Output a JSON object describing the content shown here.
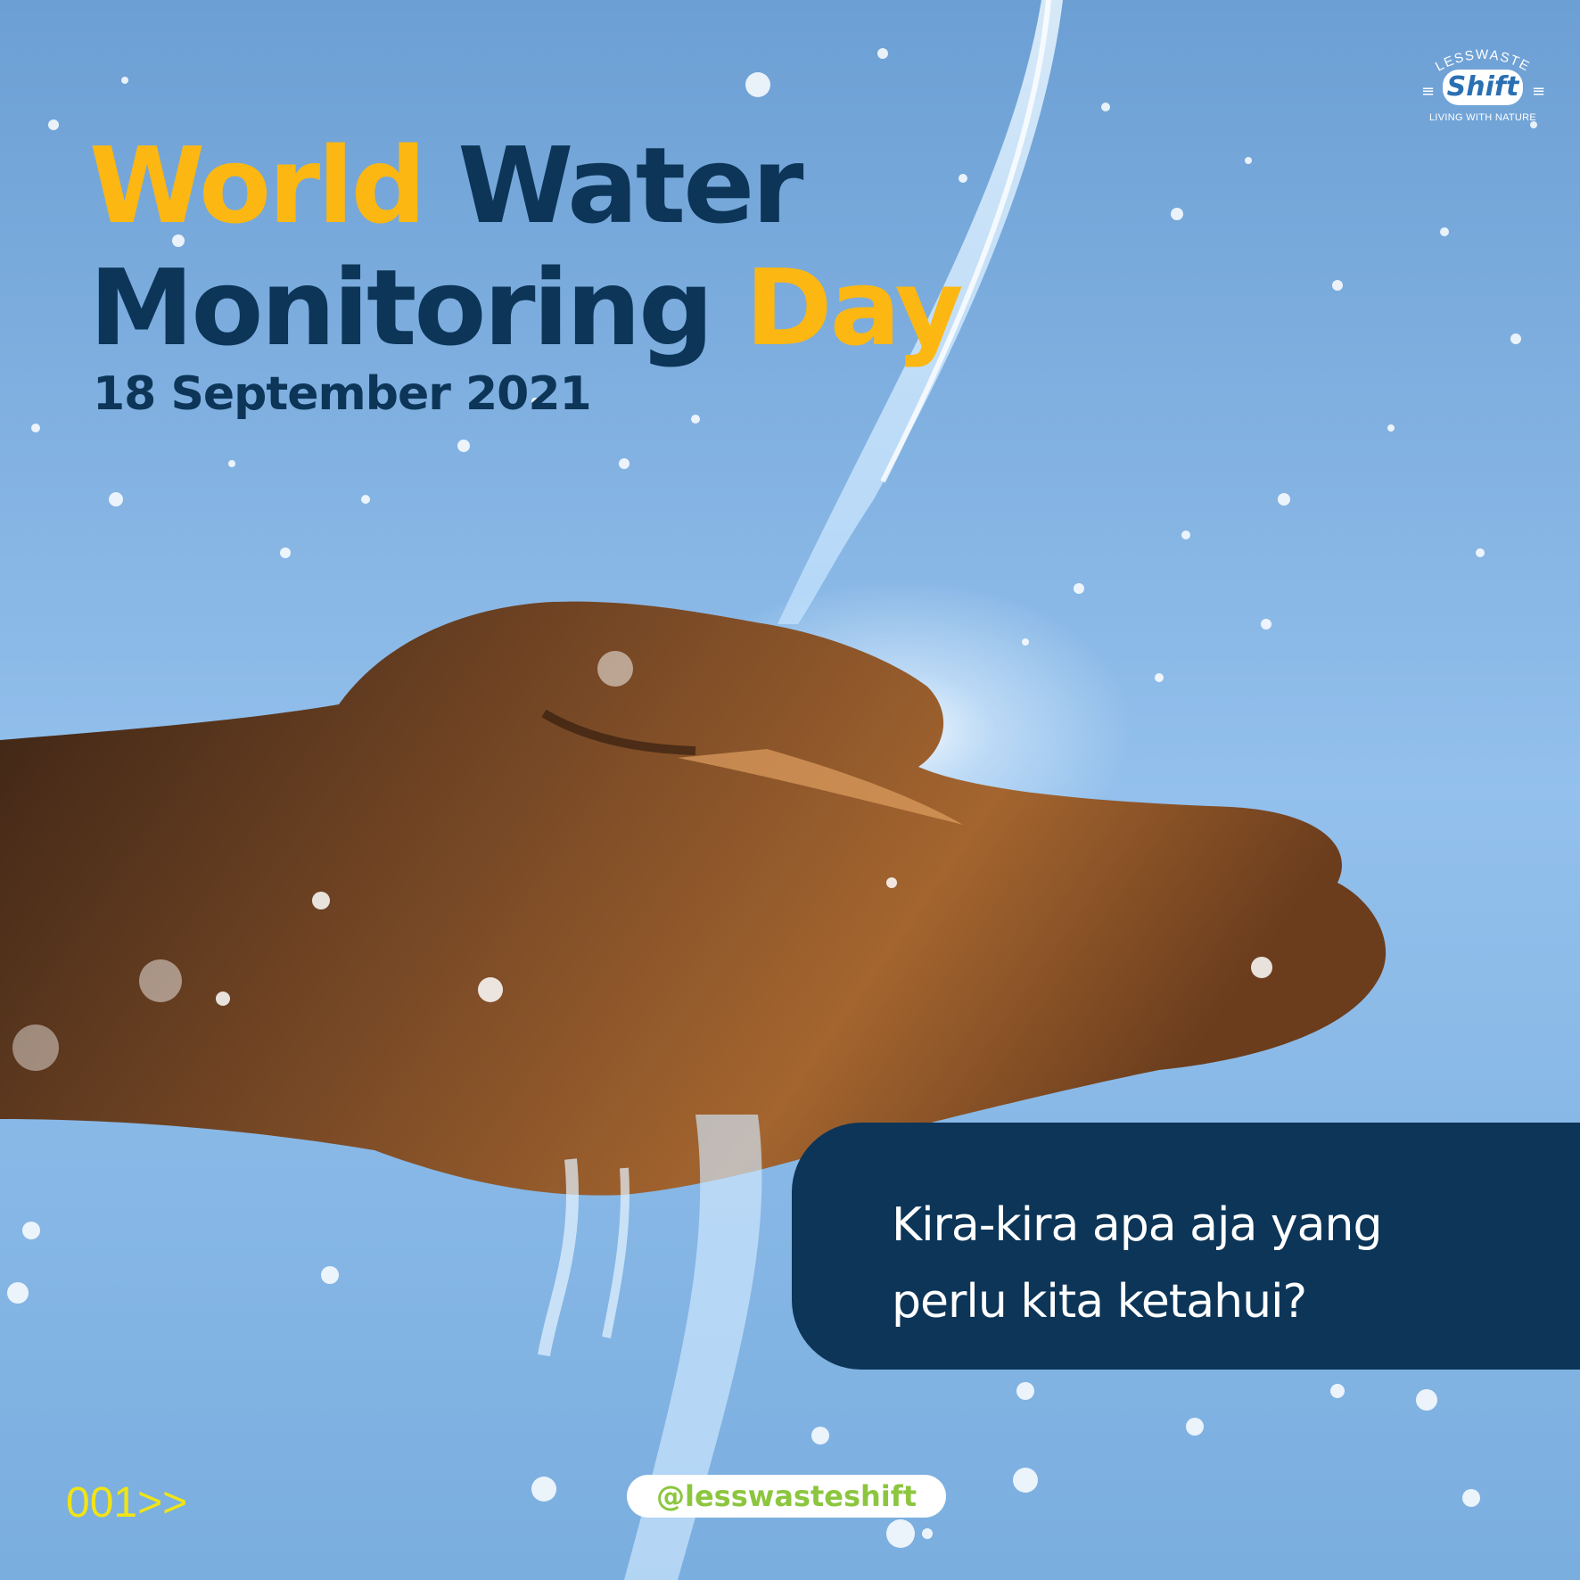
{
  "headline": {
    "line1_accent": "World",
    "line1_rest": " Water",
    "line2_main": "Monitoring ",
    "line2_accent": "Day"
  },
  "date": "18 September 2021",
  "logo": {
    "top": "LESSWASTE",
    "brand": "Shift",
    "tagline": "LIVING WITH NATURE"
  },
  "question": {
    "line1": "Kira-kira apa aja yang",
    "line2": "perlu kita ketahui?"
  },
  "page_number": "001>>",
  "handle": "@lesswasteshift",
  "colors": {
    "accent_yellow": "#fcb712",
    "navy": "#0c3558",
    "sky_top": "#6c9fd4",
    "sky_mid": "#9cc6ee",
    "page_number": "#f1e416",
    "handle_green": "#8cc63f"
  },
  "photo": {
    "subject": "hand-under-water-stream-icon"
  }
}
